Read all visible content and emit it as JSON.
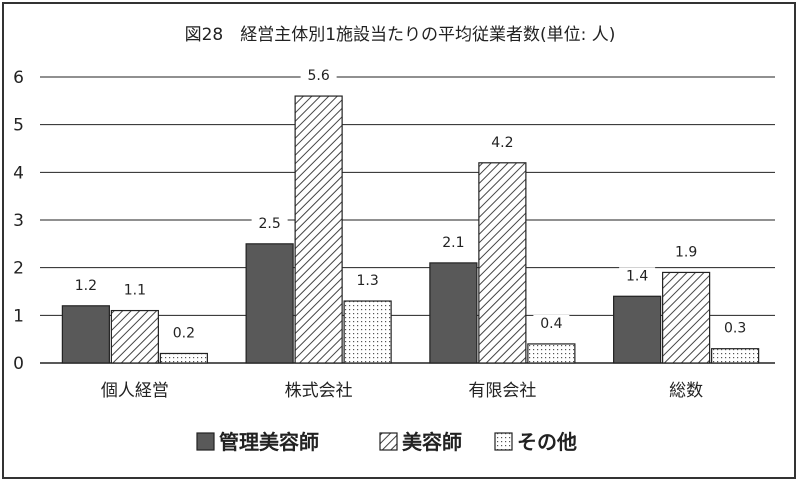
{
  "chart_data": {
    "type": "bar",
    "title": "図28　経営主体別1施設当たりの平均従業者数(単位: 人)",
    "xlabel": "",
    "ylabel": "",
    "ylim": [
      0,
      6
    ],
    "yticks": [
      0,
      1,
      2,
      3,
      4,
      5,
      6
    ],
    "grid": true,
    "legend_position": "bottom",
    "categories": [
      "個人経営",
      "株式会社",
      "有限会社",
      "総数"
    ],
    "series": [
      {
        "name": "管理美容師",
        "values": [
          1.2,
          2.5,
          2.1,
          1.4
        ],
        "labels": [
          "1.2",
          "2.5",
          "2.1",
          "1.4"
        ],
        "color": "#595959",
        "pattern": "solid"
      },
      {
        "name": "美容師",
        "values": [
          1.1,
          5.6,
          4.2,
          1.9
        ],
        "labels": [
          "1.1",
          "5.6",
          "4.2",
          "1.9"
        ],
        "color": "#ffffff",
        "pattern": "diagonal-hatch"
      },
      {
        "name": "その他",
        "values": [
          0.2,
          1.3,
          0.4,
          0.3
        ],
        "labels": [
          "0.2",
          "1.3",
          "0.4",
          "0.3"
        ],
        "color": "#ffffff",
        "pattern": "dots"
      }
    ]
  }
}
